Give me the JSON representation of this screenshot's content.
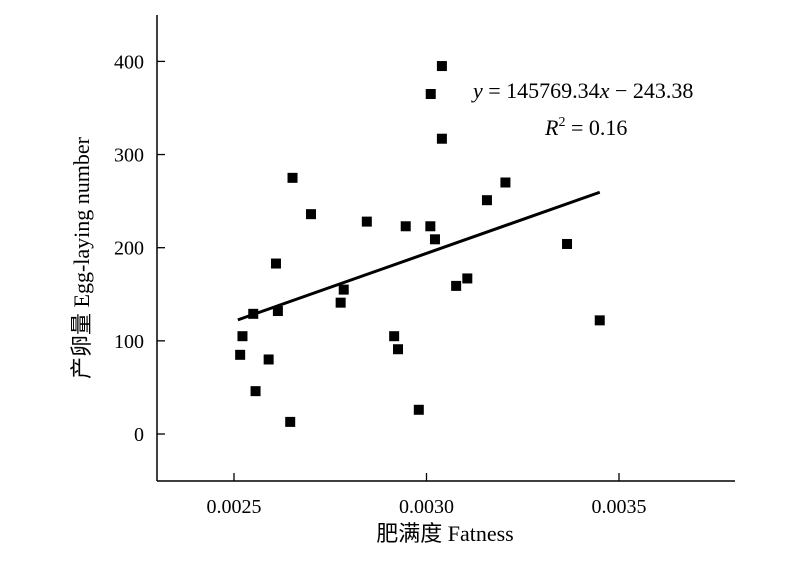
{
  "chart_data": {
    "type": "scatter",
    "xlabel": "肥满度 Fatness",
    "ylabel": "产卵量 Egg-laying number",
    "xlim": [
      0.0023,
      0.0038
    ],
    "ylim": [
      -50,
      450
    ],
    "x_ticks": [
      {
        "value": 0.0025,
        "label": "0.0025"
      },
      {
        "value": 0.003,
        "label": "0.0030"
      },
      {
        "value": 0.0035,
        "label": "0.0035"
      }
    ],
    "y_ticks": [
      {
        "value": 0,
        "label": "0"
      },
      {
        "value": 100,
        "label": "100"
      },
      {
        "value": 200,
        "label": "200"
      },
      {
        "value": 300,
        "label": "300"
      },
      {
        "value": 400,
        "label": "400"
      }
    ],
    "grid": false,
    "points": [
      {
        "x": 0.002516,
        "y": 85
      },
      {
        "x": 0.002522,
        "y": 105
      },
      {
        "x": 0.00255,
        "y": 129
      },
      {
        "x": 0.002556,
        "y": 46
      },
      {
        "x": 0.00259,
        "y": 80
      },
      {
        "x": 0.002609,
        "y": 183
      },
      {
        "x": 0.002614,
        "y": 132
      },
      {
        "x": 0.002646,
        "y": 13
      },
      {
        "x": 0.002652,
        "y": 275
      },
      {
        "x": 0.0027,
        "y": 236
      },
      {
        "x": 0.002777,
        "y": 141
      },
      {
        "x": 0.002785,
        "y": 155
      },
      {
        "x": 0.002845,
        "y": 228
      },
      {
        "x": 0.002916,
        "y": 105
      },
      {
        "x": 0.002926,
        "y": 91
      },
      {
        "x": 0.002946,
        "y": 223
      },
      {
        "x": 0.00298,
        "y": 26
      },
      {
        "x": 0.00301,
        "y": 223
      },
      {
        "x": 0.003011,
        "y": 365
      },
      {
        "x": 0.003022,
        "y": 209
      },
      {
        "x": 0.00304,
        "y": 395
      },
      {
        "x": 0.00304,
        "y": 317
      },
      {
        "x": 0.003077,
        "y": 159
      },
      {
        "x": 0.003106,
        "y": 167
      },
      {
        "x": 0.003157,
        "y": 251
      },
      {
        "x": 0.003205,
        "y": 270
      },
      {
        "x": 0.003365,
        "y": 204
      },
      {
        "x": 0.00345,
        "y": 122
      }
    ],
    "trendline": {
      "slope": 145769.34,
      "intercept": -243.38,
      "x_range": [
        0.00251,
        0.00345
      ]
    },
    "annotations": {
      "equation": {
        "y": "y",
        "eq": " = 145769.34",
        "x": "x",
        "rest": " − 243.38"
      },
      "r2": {
        "R": "R",
        "sup": "2",
        "rest": " = 0.16"
      }
    }
  }
}
